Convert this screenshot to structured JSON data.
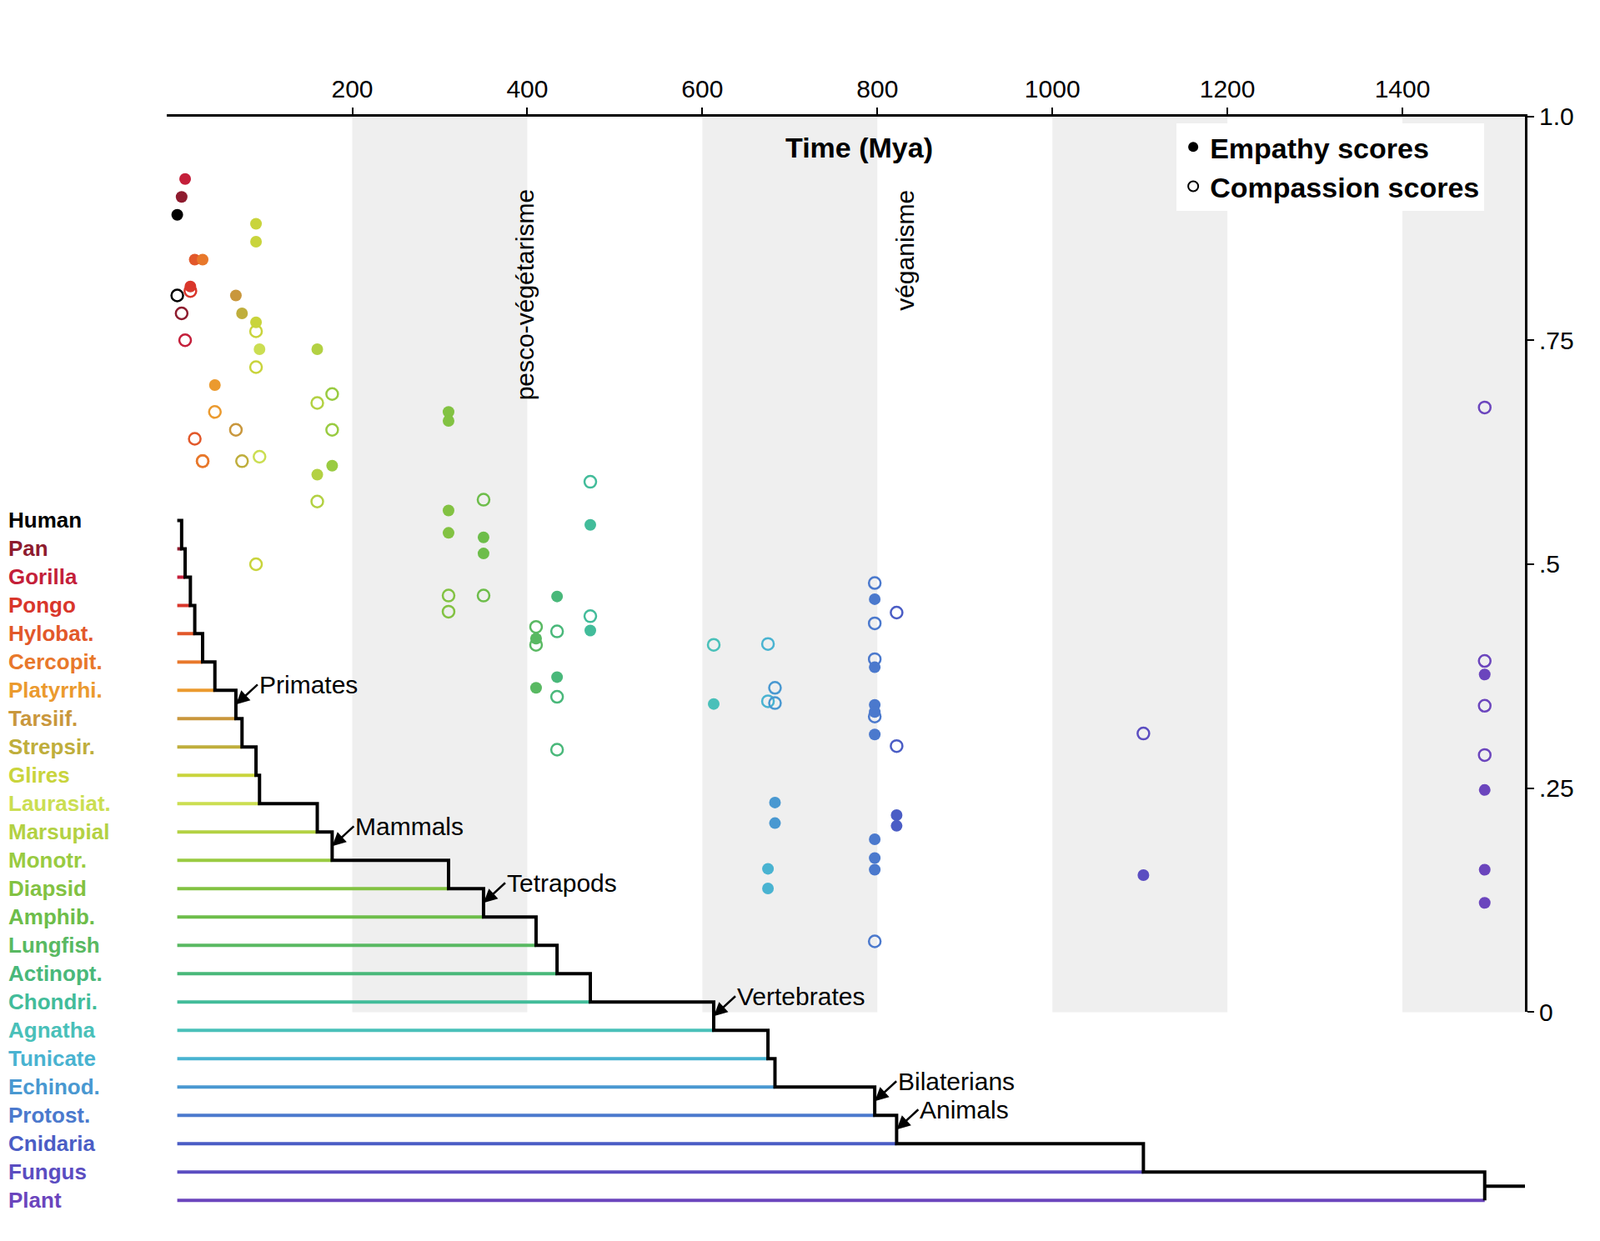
{
  "chart_data": {
    "type": "scatter",
    "xlabel": "Time (Mya)",
    "xlim": [
      -12,
      1540
    ],
    "xticks": [
      200,
      400,
      600,
      800,
      1000,
      1200,
      1400
    ],
    "ylim": [
      0,
      1
    ],
    "yticks": [
      0,
      {
        "value": 0.25,
        "label": ".25"
      },
      {
        "value": 0.5,
        "label": ".5"
      },
      {
        "value": 0.75,
        "label": ".75"
      },
      {
        "value": 1,
        "label": "1.0"
      }
    ],
    "legend": "upper right",
    "taxa": [
      {
        "name": "Human",
        "color": "#000000",
        "x": 0
      },
      {
        "name": "Pan",
        "color": "#8e1b2e",
        "x": 5
      },
      {
        "name": "Gorilla",
        "color": "#c41f3a",
        "x": 9
      },
      {
        "name": "Pongo",
        "color": "#d9362b",
        "x": 15
      },
      {
        "name": "Hylobat.",
        "color": "#e2582a",
        "x": 20
      },
      {
        "name": "Cercopit.",
        "color": "#e8782b",
        "x": 29
      },
      {
        "name": "Platyrrhi.",
        "color": "#eb9a2e",
        "x": 43
      },
      {
        "name": "Tarsiif.",
        "color": "#c9973c",
        "x": 67
      },
      {
        "name": "Strepsir.",
        "color": "#bfae3c",
        "x": 74
      },
      {
        "name": "Glires",
        "color": "#c9d43c",
        "x": 90
      },
      {
        "name": "Laurasiat.",
        "color": "#cbde52",
        "x": 94
      },
      {
        "name": "Marsupial",
        "color": "#b3d143",
        "x": 160
      },
      {
        "name": "Monotr.",
        "color": "#99cb41",
        "x": 177
      },
      {
        "name": "Diapsid",
        "color": "#82c242",
        "x": 310
      },
      {
        "name": "Amphib.",
        "color": "#6dbd4a",
        "x": 350
      },
      {
        "name": "Lungfish",
        "color": "#59b962",
        "x": 410
      },
      {
        "name": "Actinopt.",
        "color": "#49b87a",
        "x": 434
      },
      {
        "name": "Chondri.",
        "color": "#42bc9a",
        "x": 472
      },
      {
        "name": "Agnatha",
        "color": "#49c0b9",
        "x": 613
      },
      {
        "name": "Tunicate",
        "color": "#49b3d1",
        "x": 675
      },
      {
        "name": "Echinod.",
        "color": "#4998d1",
        "x": 683
      },
      {
        "name": "Protost.",
        "color": "#4b79cd",
        "x": 797
      },
      {
        "name": "Cnidaria",
        "color": "#4b5dc5",
        "x": 822
      },
      {
        "name": "Fungus",
        "color": "#5b4dc1",
        "x": 1104
      },
      {
        "name": "Plant",
        "color": "#6b45bd",
        "x": 1494
      }
    ],
    "series": [
      {
        "name": "Empathy scores",
        "marker": "filled",
        "values": [
          [
            0.89
          ],
          [
            0.91
          ],
          [
            0.93
          ],
          [
            0.81
          ],
          [
            0.84
          ],
          [
            0.84
          ],
          [
            0.7
          ],
          [
            0.8
          ],
          [
            0.78
          ],
          [
            0.88,
            0.86,
            0.77
          ],
          [
            0.74
          ],
          [
            0.74,
            0.6
          ],
          [
            0.61
          ],
          [
            0.67,
            0.66,
            0.56,
            0.535
          ],
          [
            0.53,
            0.512
          ],
          [
            0.417,
            0.362
          ],
          [
            0.464,
            0.374
          ],
          [
            0.544,
            0.426
          ],
          [
            0.344
          ],
          [
            0.16,
            0.138
          ],
          [
            0.234,
            0.211
          ],
          [
            0.461,
            0.385,
            0.343,
            0.335,
            0.31,
            0.193,
            0.172,
            0.159
          ],
          [
            0.22,
            0.208
          ],
          [
            0.153
          ],
          [
            0.377,
            0.248,
            0.159,
            0.122
          ]
        ]
      },
      {
        "name": "Compassion scores",
        "marker": "open",
        "values": [
          [
            0.8
          ],
          [
            0.78
          ],
          [
            0.75
          ],
          [
            0.805
          ],
          [
            0.64
          ],
          [
            0.615,
            0.615
          ],
          [
            0.67
          ],
          [
            0.65
          ],
          [
            0.615
          ],
          [
            0.76,
            0.72,
            0.5
          ],
          [
            0.62
          ],
          [
            0.68,
            0.57
          ],
          [
            0.69,
            0.65
          ],
          [
            0.465,
            0.447
          ],
          [
            0.572,
            0.465
          ],
          [
            0.43,
            0.41
          ],
          [
            0.425,
            0.352,
            0.293
          ],
          [
            0.592,
            0.442
          ],
          [
            0.41
          ],
          [
            0.411,
            0.347
          ],
          [
            0.362,
            0.345
          ],
          [
            0.479,
            0.434,
            0.394,
            0.33,
            0.079
          ],
          [
            0.446,
            0.297
          ],
          [
            0.311
          ],
          [
            0.675,
            0.392,
            0.342,
            0.287
          ]
        ]
      }
    ],
    "clades": [
      {
        "label": "Primates",
        "taxon": "Tarsiif."
      },
      {
        "label": "Mammals",
        "taxon": "Monotr."
      },
      {
        "label": "Tetrapods",
        "taxon": "Amphib."
      },
      {
        "label": "Vertebrates",
        "taxon": "Agnatha"
      },
      {
        "label": "Bilaterians",
        "taxon": "Protost."
      },
      {
        "label": "Animals",
        "taxon": "Cnidaria"
      }
    ],
    "annotations": [
      {
        "text": "pesco-végétarisme",
        "x": 397
      },
      {
        "text": "véganisme",
        "x": 831
      }
    ]
  }
}
